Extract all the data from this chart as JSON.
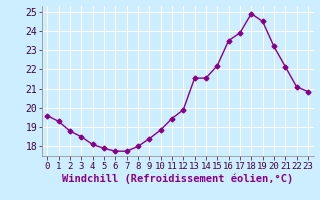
{
  "x": [
    0,
    1,
    2,
    3,
    4,
    5,
    6,
    7,
    8,
    9,
    10,
    11,
    12,
    13,
    14,
    15,
    16,
    17,
    18,
    19,
    20,
    21,
    22,
    23
  ],
  "y": [
    19.6,
    19.3,
    18.8,
    18.5,
    18.1,
    17.9,
    17.75,
    17.75,
    18.0,
    18.4,
    18.85,
    19.45,
    19.9,
    21.55,
    21.55,
    22.2,
    23.5,
    23.9,
    24.9,
    24.5,
    23.2,
    22.15,
    21.1,
    20.85
  ],
  "line_color": "#880088",
  "marker": "D",
  "marker_size": 2.5,
  "xlabel": "Windchill (Refroidissement éolien,°C)",
  "xlim_min": -0.5,
  "xlim_max": 23.5,
  "ylim_min": 17.5,
  "ylim_max": 25.3,
  "yticks": [
    18,
    19,
    20,
    21,
    22,
    23,
    24,
    25
  ],
  "xticks": [
    0,
    1,
    2,
    3,
    4,
    5,
    6,
    7,
    8,
    9,
    10,
    11,
    12,
    13,
    14,
    15,
    16,
    17,
    18,
    19,
    20,
    21,
    22,
    23
  ],
  "bg_color": "#cceeff",
  "grid_color": "#ffffff",
  "xlabel_fontsize": 7.5,
  "tick_fontsize": 6.5,
  "ytick_fontsize": 7
}
